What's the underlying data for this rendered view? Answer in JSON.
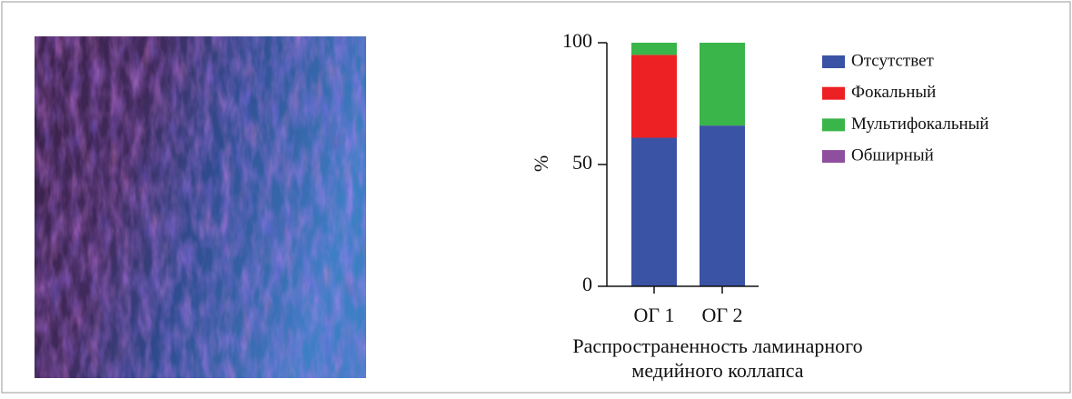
{
  "chart_data": {
    "type": "stacked_bar",
    "categories": [
      "ОГ 1",
      "ОГ 2"
    ],
    "series": [
      {
        "name": "Отсутствет",
        "color": "#3a53a4",
        "values": [
          61,
          66
        ]
      },
      {
        "name": "Фокальный",
        "color": "#ed2024",
        "values": [
          34,
          0
        ]
      },
      {
        "name": "Мультифокальный",
        "color": "#3ab54a",
        "values": [
          5,
          34
        ]
      },
      {
        "name": "Обширный",
        "color": "#8e4f9f",
        "values": [
          0,
          0
        ]
      }
    ],
    "ylabel": "%",
    "xlabel": [
      "Распространенность ламинарного",
      "медийного коллапса"
    ],
    "ylim": [
      0,
      100
    ],
    "yticks": [
      0,
      50,
      100
    ],
    "legend": "right"
  }
}
